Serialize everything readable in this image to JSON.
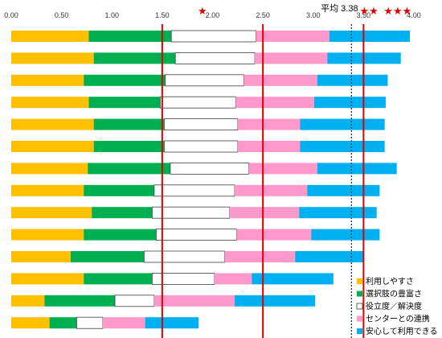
{
  "chart_data": {
    "type": "bar",
    "orientation": "horizontal",
    "stacked": true,
    "xlim": [
      0,
      4.0
    ],
    "x_ticks": [
      "0.00",
      "0.50",
      "1.00",
      "1.50",
      "2.00",
      "2.50",
      "3.00",
      "3.50",
      "4.00"
    ],
    "x_tick_values": [
      0,
      0.5,
      1,
      1.5,
      2,
      2.5,
      3,
      3.5,
      4
    ],
    "grid": false,
    "legend_position": "bottom-right",
    "series": [
      {
        "name": "利用しやすさ",
        "color": "#ffc000",
        "values": [
          0.77,
          0.82,
          0.72,
          0.77,
          0.82,
          0.82,
          0.76,
          0.72,
          0.8,
          0.72,
          0.59,
          0.72,
          0.33,
          0.38
        ]
      },
      {
        "name": "選択肢の豊富さ",
        "color": "#00b050",
        "values": [
          0.82,
          0.81,
          0.81,
          0.71,
          0.7,
          0.7,
          0.82,
          0.7,
          0.6,
          0.72,
          0.73,
          0.68,
          0.7,
          0.27
        ]
      },
      {
        "name": "役立度／解決度",
        "color": "#ffffff",
        "values": [
          0.84,
          0.79,
          0.78,
          0.75,
          0.73,
          0.73,
          0.78,
          0.8,
          0.77,
          0.8,
          0.8,
          0.62,
          0.39,
          0.26
        ]
      },
      {
        "name": "センターとの連携",
        "color": "#ff99cc",
        "values": [
          0.73,
          0.72,
          0.73,
          0.78,
          0.62,
          0.62,
          0.68,
          0.72,
          0.69,
          0.74,
          0.7,
          0.37,
          0.8,
          0.42
        ]
      },
      {
        "name": "安心して利用できる",
        "color": "#00b0f0",
        "values": [
          0.8,
          0.73,
          0.7,
          0.71,
          0.84,
          0.84,
          0.79,
          0.72,
          0.77,
          0.68,
          0.68,
          0.81,
          0.8,
          0.53
        ]
      }
    ],
    "reference_lines": [
      {
        "x": 1.5,
        "style": "solid",
        "color": "#e00000"
      },
      {
        "x": 2.5,
        "style": "solid",
        "color": "#e00000"
      },
      {
        "x": 3.5,
        "style": "solid",
        "color": "#e00000"
      },
      {
        "x": 3.38,
        "style": "dotted",
        "color": "#1f3864"
      }
    ],
    "annotations": [
      {
        "text": "★",
        "x": 1.5
      },
      {
        "text": "★★",
        "x": 2.5
      },
      {
        "text": "平均 3.38",
        "x": 3.38
      },
      {
        "text": "★★★",
        "x": 3.5
      }
    ]
  }
}
